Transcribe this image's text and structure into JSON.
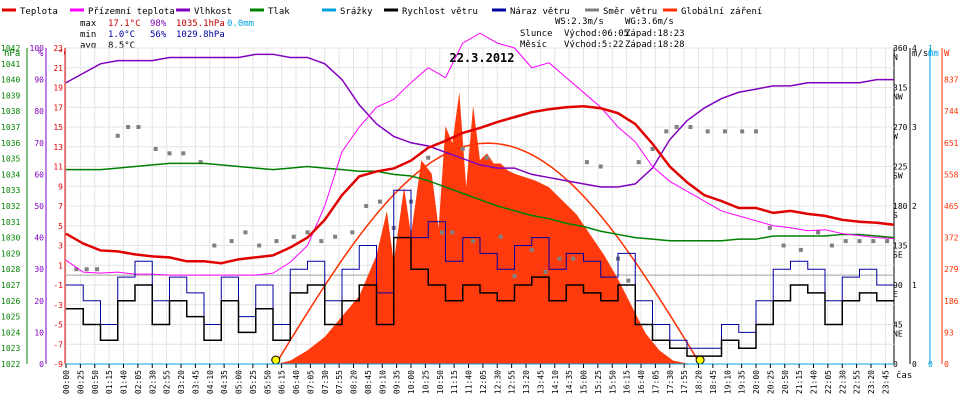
{
  "chart_data": {
    "type": "line",
    "title": "22.3.2012",
    "legend": [
      {
        "name": "Teplota",
        "color": "#e00000"
      },
      {
        "name": "Přízemní teplota",
        "color": "#ff00ff"
      },
      {
        "name": "Vlhkost",
        "color": "#8000c0"
      },
      {
        "name": "Tlak",
        "color": "#008000"
      },
      {
        "name": "Srážky",
        "color": "#00a0e0"
      },
      {
        "name": "Rychlost větru",
        "color": "#000000"
      },
      {
        "name": "Náraz větru",
        "color": "#0000a0"
      },
      {
        "name": "Směr větru",
        "color": "#808080"
      },
      {
        "name": "Globální záření",
        "color": "#ff3000"
      }
    ],
    "stats": {
      "max": {
        "label": "max",
        "temp": "17.1°C",
        "hum": "98%",
        "press": "1035.1hPa",
        "rain": "0.0mm"
      },
      "min": {
        "label": "min",
        "temp": "1.0°C",
        "hum": "56%",
        "press": "1029.8hPa"
      },
      "avg": {
        "label": "avg",
        "temp": "8.5°C"
      },
      "ws": "WS:2.3m/s",
      "wg": "WG:3.6m/s",
      "sun": {
        "label": "Slunce",
        "rise": "Východ:06:05",
        "set": "Západ:18:23"
      },
      "moon": {
        "label": "Měsíc",
        "rise": "Východ:5:22",
        "set": "Západ:18:28"
      }
    },
    "axes": {
      "hpa_title": "hPa",
      "hum_title": "%",
      "temp_title": "°C",
      "ms_title": "m/s",
      "mm_title": "mm",
      "w_title": "W",
      "x_title": "čas",
      "hpa_ticks": [
        "1042",
        "1041",
        "1040",
        "1039",
        "1038",
        "1037",
        "1036",
        "1035",
        "1034",
        "1033",
        "1032",
        "1031",
        "1030",
        "1029",
        "1028",
        "1027",
        "1026",
        "1025",
        "1024",
        "1023",
        "1022"
      ],
      "hum_ticks": [
        "100",
        "90",
        "80",
        "70",
        "60",
        "50",
        "40",
        "30",
        "20",
        "10",
        "0"
      ],
      "temp_ticks": [
        "23",
        "21",
        "19",
        "17",
        "15",
        "13",
        "11",
        "9",
        "7",
        "5",
        "3",
        "1",
        "-1",
        "-3",
        "-5",
        "-7",
        "-9"
      ],
      "dir_ticks": [
        {
          "deg": "360",
          "name": "N"
        },
        {
          "deg": "315",
          "name": "NW"
        },
        {
          "deg": "270",
          "name": "W"
        },
        {
          "deg": "225",
          "name": "SW"
        },
        {
          "deg": "180",
          "name": "S"
        },
        {
          "deg": "135",
          "name": "SE"
        },
        {
          "deg": "90",
          "name": "E"
        },
        {
          "deg": "45",
          "name": "NE"
        },
        {
          "deg": "0",
          "name": ""
        }
      ],
      "ms_ticks": [
        "4",
        "3",
        "2",
        "1",
        "0"
      ],
      "mm_ticks": [
        "1",
        "0"
      ],
      "w_ticks": [
        "837",
        "744",
        "651",
        "558",
        "465",
        "372",
        "279",
        "186",
        "93",
        "0"
      ],
      "time_ticks": [
        "00:00",
        "00:25",
        "00:50",
        "01:15",
        "01:40",
        "02:05",
        "02:30",
        "02:55",
        "03:20",
        "03:45",
        "04:10",
        "04:35",
        "05:00",
        "05:25",
        "05:50",
        "06:15",
        "06:40",
        "07:05",
        "07:30",
        "07:55",
        "08:20",
        "08:45",
        "09:10",
        "09:35",
        "10:00",
        "10:25",
        "10:50",
        "11:15",
        "11:40",
        "12:05",
        "12:30",
        "12:55",
        "13:20",
        "13:45",
        "14:10",
        "14:35",
        "15:00",
        "15:25",
        "15:50",
        "16:15",
        "16:40",
        "17:05",
        "17:30",
        "17:55",
        "18:20",
        "18:45",
        "19:10",
        "19:35",
        "20:00",
        "20:25",
        "20:50",
        "21:15",
        "21:40",
        "22:05",
        "22:30",
        "22:55",
        "23:20",
        "23:45"
      ]
    },
    "series": {
      "temperature": {
        "unit": "°C",
        "x": [
          0,
          0.5,
          1,
          1.5,
          2,
          2.5,
          3,
          3.5,
          4,
          4.5,
          5,
          5.5,
          6,
          6.5,
          7,
          7.5,
          8,
          8.5,
          9,
          9.5,
          10,
          10.5,
          11,
          11.5,
          12,
          12.5,
          13,
          13.5,
          14,
          14.5,
          15,
          15.5,
          16,
          16.5,
          17,
          17.5,
          18,
          18.5,
          19,
          19.5,
          20,
          20.5,
          21,
          21.5,
          22,
          22.5,
          23,
          23.5,
          24
        ],
        "y": [
          4.2,
          3.2,
          2.5,
          2.4,
          2.1,
          1.9,
          1.8,
          1.4,
          1.4,
          1.2,
          1.6,
          1.8,
          2.0,
          2.8,
          3.8,
          5.6,
          8.1,
          10.0,
          10.5,
          10.8,
          11.6,
          12.9,
          13.6,
          14.4,
          14.9,
          15.5,
          16.0,
          16.5,
          16.8,
          17.0,
          17.1,
          16.9,
          16.4,
          15.3,
          13.3,
          11.0,
          9.4,
          8.1,
          7.5,
          6.8,
          6.8,
          6.3,
          6.5,
          6.2,
          6.0,
          5.6,
          5.4,
          5.3,
          5.1
        ]
      },
      "ground_temperature": {
        "unit": "°C",
        "x": [
          0,
          0.5,
          1,
          1.5,
          2,
          2.5,
          3,
          3.5,
          4,
          4.5,
          5,
          5.5,
          6,
          6.5,
          7,
          7.5,
          8,
          8.5,
          9,
          9.5,
          10,
          10.5,
          11,
          11.5,
          12,
          12.5,
          13,
          13.5,
          14,
          14.5,
          15,
          15.5,
          16,
          16.5,
          17,
          17.5,
          18,
          18.5,
          19,
          19.5,
          20,
          20.5,
          21,
          21.5,
          22,
          22.5,
          23,
          23.5,
          24
        ],
        "y": [
          1.5,
          0.3,
          0.2,
          0.3,
          0.1,
          0.1,
          0.0,
          0.0,
          0.0,
          0.0,
          0.0,
          0.0,
          0.2,
          1.3,
          3.0,
          7.0,
          12.5,
          15.0,
          17.0,
          17.8,
          19.5,
          21.0,
          20.0,
          23.5,
          24.5,
          23.5,
          23.0,
          21.0,
          21.5,
          20.0,
          18.5,
          17.0,
          15.0,
          13.5,
          11.0,
          9.5,
          8.5,
          7.5,
          6.5,
          6.0,
          5.5,
          5.0,
          4.8,
          4.5,
          4.6,
          4.2,
          4.0,
          3.8,
          3.7
        ]
      },
      "humidity": {
        "unit": "%",
        "x": [
          0,
          0.5,
          1,
          1.5,
          2,
          2.5,
          3,
          3.5,
          4,
          4.5,
          5,
          5.5,
          6,
          6.5,
          7,
          7.5,
          8,
          8.5,
          9,
          9.5,
          10,
          10.5,
          11,
          11.5,
          12,
          12.5,
          13,
          13.5,
          14,
          14.5,
          15,
          15.5,
          16,
          16.5,
          17,
          17.5,
          18,
          18.5,
          19,
          19.5,
          20,
          20.5,
          21,
          21.5,
          22,
          22.5,
          23,
          23.5,
          24
        ],
        "y": [
          89,
          92,
          95,
          96,
          96,
          96,
          97,
          97,
          97,
          97,
          97,
          98,
          98,
          97,
          97,
          95,
          90,
          82,
          76,
          72,
          70,
          69,
          67,
          65,
          63,
          62,
          62,
          60,
          59,
          58,
          57,
          56,
          56,
          57,
          62,
          71,
          77,
          81,
          84,
          86,
          87,
          88,
          88,
          89,
          89,
          89,
          89,
          90,
          90
        ]
      },
      "pressure": {
        "unit": "hPa",
        "x": [
          0,
          0.5,
          1,
          1.5,
          2,
          2.5,
          3,
          3.5,
          4,
          4.5,
          5,
          5.5,
          6,
          6.5,
          7,
          7.5,
          8,
          8.5,
          9,
          9.5,
          10,
          10.5,
          11,
          11.5,
          12,
          12.5,
          13,
          13.5,
          14,
          14.5,
          15,
          15.5,
          16,
          16.5,
          17,
          17.5,
          18,
          18.5,
          19,
          19.5,
          20,
          20.5,
          21,
          21.5,
          22,
          22.5,
          23,
          23.5,
          24
        ],
        "y": [
          1034.3,
          1034.3,
          1034.3,
          1034.4,
          1034.5,
          1034.6,
          1034.7,
          1034.7,
          1034.7,
          1034.6,
          1034.5,
          1034.4,
          1034.3,
          1034.4,
          1034.5,
          1034.4,
          1034.3,
          1034.2,
          1034.2,
          1034.0,
          1033.9,
          1033.6,
          1033.2,
          1032.8,
          1032.4,
          1032.0,
          1031.7,
          1031.4,
          1031.2,
          1030.9,
          1030.7,
          1030.4,
          1030.2,
          1030.0,
          1029.9,
          1029.8,
          1029.8,
          1029.8,
          1029.8,
          1029.9,
          1029.9,
          1030.1,
          1030.1,
          1030.1,
          1030.1,
          1030.2,
          1030.2,
          1030.1,
          1030.0
        ]
      },
      "rain": {
        "unit": "mm",
        "x": [
          0,
          24
        ],
        "y": [
          0.0,
          0.0
        ]
      },
      "wind_speed": {
        "unit": "m/s",
        "x": [
          0,
          0.5,
          1,
          1.5,
          2,
          2.5,
          3,
          3.5,
          4,
          4.5,
          5,
          5.5,
          6,
          6.5,
          7,
          7.5,
          8,
          8.5,
          9,
          9.5,
          10,
          10.5,
          11,
          11.5,
          12,
          12.5,
          13,
          13.5,
          14,
          14.5,
          15,
          15.5,
          16,
          16.5,
          17,
          17.5,
          18,
          18.5,
          19,
          19.5,
          20,
          20.5,
          21,
          21.5,
          22,
          22.5,
          23,
          23.5,
          24
        ],
        "y": [
          0.7,
          0.5,
          0.3,
          0.8,
          1.0,
          0.5,
          0.8,
          0.6,
          0.3,
          0.8,
          0.4,
          0.7,
          0.3,
          0.9,
          1.0,
          0.5,
          0.8,
          1.0,
          0.5,
          1.6,
          1.2,
          1.0,
          0.8,
          1.0,
          0.9,
          0.8,
          1.0,
          1.1,
          0.8,
          1.0,
          0.9,
          0.8,
          1.0,
          0.5,
          0.3,
          0.2,
          0.1,
          0.1,
          0.3,
          0.2,
          0.5,
          0.8,
          1.0,
          0.9,
          0.5,
          0.8,
          0.9,
          0.8,
          0.8
        ]
      },
      "wind_gust": {
        "unit": "m/s",
        "x": [
          0,
          0.5,
          1,
          1.5,
          2,
          2.5,
          3,
          3.5,
          4,
          4.5,
          5,
          5.5,
          6,
          6.5,
          7,
          7.5,
          8,
          8.5,
          9,
          9.5,
          10,
          10.5,
          11,
          11.5,
          12,
          12.5,
          13,
          13.5,
          14,
          14.5,
          15,
          15.5,
          16,
          16.5,
          17,
          17.5,
          18,
          18.5,
          19,
          19.5,
          20,
          20.5,
          21,
          21.5,
          22,
          22.5,
          23,
          23.5,
          24
        ],
        "y": [
          1.0,
          0.8,
          0.5,
          1.1,
          1.3,
          0.8,
          1.1,
          0.9,
          0.5,
          1.1,
          0.6,
          1.0,
          0.5,
          1.2,
          1.3,
          0.8,
          1.2,
          1.5,
          0.9,
          2.2,
          1.6,
          1.8,
          1.3,
          1.6,
          1.4,
          1.2,
          1.5,
          1.6,
          1.2,
          1.4,
          1.3,
          1.1,
          1.4,
          0.8,
          0.5,
          0.3,
          0.2,
          0.2,
          0.5,
          0.4,
          0.8,
          1.2,
          1.3,
          1.2,
          0.8,
          1.1,
          1.2,
          1.0,
          1.0
        ]
      },
      "wind_direction": {
        "unit": "°",
        "x": [
          0.3,
          0.6,
          0.9,
          1.5,
          1.8,
          2.1,
          2.6,
          3.0,
          3.4,
          3.9,
          4.3,
          4.8,
          5.2,
          5.6,
          6.1,
          6.6,
          7.0,
          7.4,
          7.8,
          8.3,
          8.7,
          9.1,
          9.5,
          10.0,
          10.5,
          10.9,
          11.2,
          11.5,
          11.8,
          12.2,
          12.6,
          13.0,
          13.5,
          13.9,
          14.3,
          14.7,
          15.1,
          15.5,
          16.0,
          16.3,
          16.6,
          17.0,
          17.4,
          17.7,
          18.1,
          18.6,
          19.1,
          19.6,
          20.0,
          20.4,
          20.8,
          21.3,
          21.8,
          22.2,
          22.6,
          23.0,
          23.4,
          23.8
        ],
        "y": [
          108,
          108,
          108,
          260,
          270,
          270,
          245,
          240,
          240,
          230,
          135,
          140,
          150,
          135,
          140,
          145,
          150,
          140,
          145,
          150,
          180,
          185,
          155,
          185,
          235,
          150,
          150,
          245,
          140,
          235,
          145,
          100,
          130,
          105,
          120,
          120,
          230,
          225,
          120,
          95,
          230,
          245,
          265,
          270,
          270,
          265,
          265,
          265,
          265,
          155,
          135,
          130,
          150,
          135,
          140,
          140,
          140,
          140
        ]
      },
      "solar_radiation": {
        "unit": "W/m²",
        "x": [
          0,
          6.1,
          6.5,
          7,
          7.5,
          8,
          8.5,
          9,
          9.3,
          9.5,
          9.8,
          10,
          10.3,
          10.6,
          10.8,
          11,
          11.2,
          11.4,
          11.6,
          11.8,
          12,
          12.2,
          12.4,
          12.6,
          12.8,
          13,
          13.3,
          13.6,
          14,
          14.4,
          14.8,
          15.2,
          15.6,
          16,
          16.4,
          16.8,
          17.2,
          17.6,
          18,
          18.3,
          24
        ],
        "y": [
          0,
          0,
          10,
          40,
          80,
          140,
          200,
          320,
          450,
          300,
          520,
          380,
          600,
          560,
          400,
          700,
          650,
          800,
          520,
          760,
          600,
          620,
          590,
          590,
          570,
          560,
          550,
          540,
          520,
          480,
          440,
          380,
          320,
          250,
          170,
          90,
          40,
          10,
          2,
          0,
          0
        ]
      },
      "sun_curve": {
        "unit": "W/m²",
        "sunrise": 6.08,
        "sunset": 18.38,
        "peak": 650
      }
    }
  }
}
